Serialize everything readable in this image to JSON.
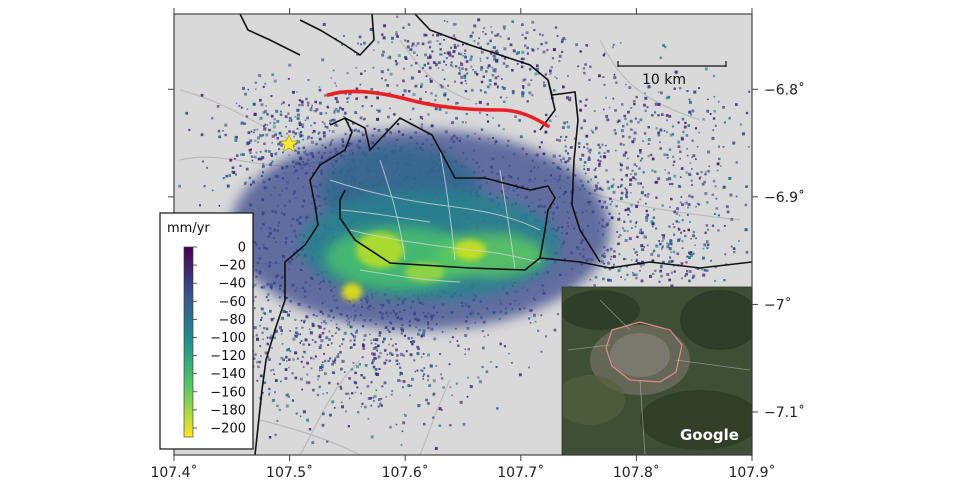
{
  "colors": {
    "background": "#d9d9d9",
    "fault": "#e8202a",
    "boundary": "#111111",
    "roads": "#b8b8b8",
    "epicenter": "#ffe92e",
    "gradient": [
      "#440154",
      "#3b528b",
      "#21908d",
      "#5dc962",
      "#fde725"
    ]
  },
  "chart_data": {
    "type": "map",
    "x_ticks": [
      "107.4˚",
      "107.5˚",
      "107.6˚",
      "107.7˚",
      "107.8˚",
      "107.9˚"
    ],
    "y_ticks": [
      "−6.8˚",
      "−6.9˚",
      "−7˚",
      "−7.1˚"
    ],
    "xlim": [
      107.4,
      107.9
    ],
    "ylim": [
      -7.14,
      -6.73
    ],
    "scale_bar_label": "10 km",
    "colorbar": {
      "title": "mm/yr",
      "tick_labels": [
        "0",
        "−20",
        "−40",
        "−60",
        "−80",
        "−100",
        "−120",
        "−140",
        "−160",
        "−180",
        "−200"
      ],
      "range": [
        -210,
        0
      ]
    },
    "epicenter": {
      "lon": 107.5,
      "lat": -6.855,
      "icon": "star-icon"
    },
    "inset": {
      "label": "Google"
    }
  }
}
